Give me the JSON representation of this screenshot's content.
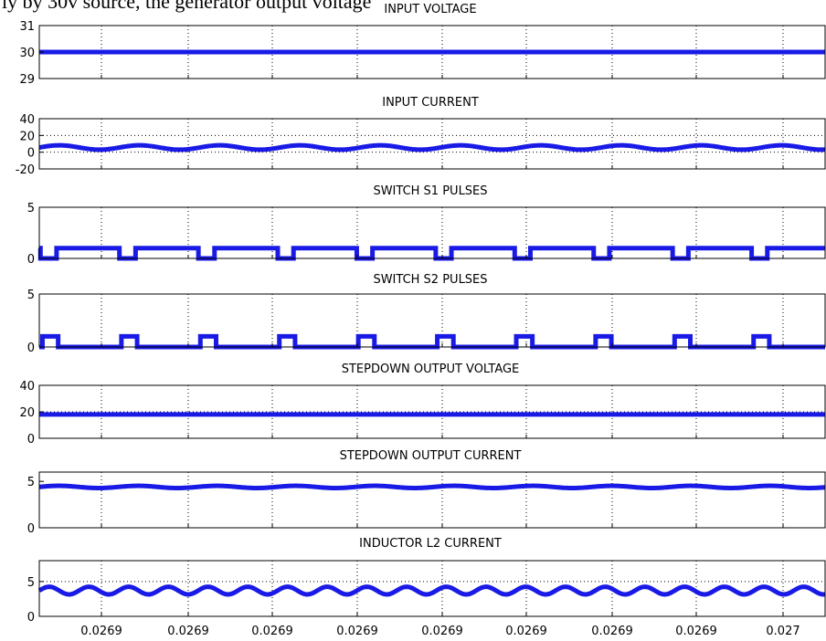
{
  "caption_fragment": "ly by 30v source, the generator output voltage",
  "chart_data": [
    {
      "type": "line",
      "title": "INPUT VOLTAGE",
      "ylim": [
        29,
        31
      ],
      "yticks": [
        29,
        30,
        31
      ],
      "series": [
        {
          "waveform": "constant",
          "level": 30,
          "color": "#1a1ae6"
        }
      ],
      "dotted_grid_y": [],
      "xlim": [
        0.026837,
        0.027023
      ]
    },
    {
      "type": "line",
      "title": "INPUT CURRENT",
      "ylim": [
        -20,
        40
      ],
      "yticks": [
        -20,
        0,
        20,
        40
      ],
      "series": [
        {
          "waveform": "ripple",
          "mean": 5.6,
          "amplitude": 2.6,
          "period": 1.9e-05,
          "color": "#1a1ae6"
        }
      ],
      "dotted_grid_y": [
        0,
        20
      ],
      "xlim": [
        0.026837,
        0.027023
      ]
    },
    {
      "type": "line",
      "title": "SWITCH S1 PULSES",
      "ylim": [
        0,
        5
      ],
      "yticks": [
        0,
        5
      ],
      "series": [
        {
          "waveform": "pulse",
          "high": 1,
          "low": 0,
          "period": 1.87e-05,
          "duty": 0.8,
          "phase": 4e-06,
          "color": "#1a1ae6"
        }
      ],
      "dotted_grid_y": [],
      "xlim": [
        0.026837,
        0.027023
      ]
    },
    {
      "type": "line",
      "title": "SWITCH S2 PULSES",
      "ylim": [
        0,
        5
      ],
      "yticks": [
        0,
        5
      ],
      "series": [
        {
          "waveform": "pulse",
          "high": 1,
          "low": 0,
          "period": 1.87e-05,
          "duty": 0.2,
          "phase": 7e-07,
          "color": "#1a1ae6"
        }
      ],
      "dotted_grid_y": [],
      "xlim": [
        0.026837,
        0.027023
      ]
    },
    {
      "type": "line",
      "title": "STEPDOWN OUTPUT VOLTAGE",
      "ylim": [
        0,
        40
      ],
      "yticks": [
        0,
        20,
        40
      ],
      "series": [
        {
          "waveform": "constant",
          "level": 18,
          "color": "#1a1ae6"
        }
      ],
      "dotted_grid_y": [
        20
      ],
      "xlim": [
        0.026837,
        0.027023
      ]
    },
    {
      "type": "line",
      "title": "STEPDOWN OUTPUT CURRENT",
      "ylim": [
        0,
        6
      ],
      "yticks": [
        0,
        5
      ],
      "series": [
        {
          "waveform": "ripple",
          "mean": 4.4,
          "amplitude": 0.12,
          "period": 1.87e-05,
          "color": "#1a1ae6"
        }
      ],
      "dotted_grid_y": [],
      "xlim": [
        0.026837,
        0.027023
      ]
    },
    {
      "type": "line",
      "title": "INDUCTOR L2 CURRENT",
      "ylim": [
        0,
        8
      ],
      "yticks": [
        0,
        5
      ],
      "series": [
        {
          "waveform": "ripple",
          "mean": 3.7,
          "amplitude": 0.55,
          "period": 9.4e-06,
          "color": "#1a1ae6"
        }
      ],
      "dotted_grid_y": [
        5
      ],
      "xlim": [
        0.026837,
        0.027023
      ],
      "xtick_labels": [
        "0.0269",
        "0.0269",
        "0.0269",
        "0.0269",
        "0.0269",
        "0.0269",
        "0.0269",
        "0.0269",
        "0.027"
      ]
    }
  ]
}
